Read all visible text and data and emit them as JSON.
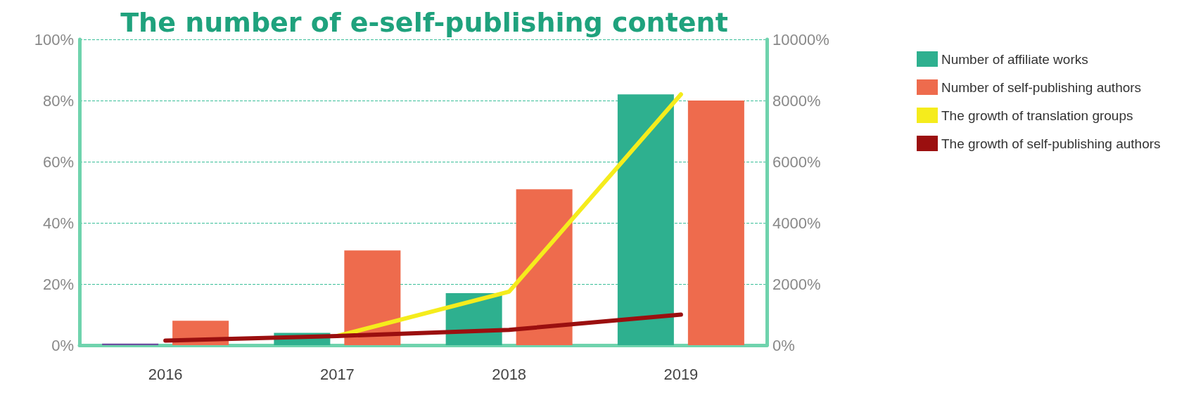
{
  "chart_data": {
    "type": "bar",
    "title": "The number of e-self-publishing content",
    "categories": [
      "2016",
      "2017",
      "2018",
      "2019"
    ],
    "series": [
      {
        "name": "Number of affiliate works",
        "color": "#2eb08f",
        "colors": [
          "#6b4fa0",
          "#2eb08f",
          "#2eb08f",
          "#2eb08f"
        ],
        "values": [
          0.5,
          4,
          17,
          82
        ]
      },
      {
        "name": "Number of self-publishing authors",
        "color": "#ee6b4d",
        "values": [
          8,
          31,
          51,
          80
        ]
      },
      {
        "name": "The growth of translation groups",
        "type": "line",
        "axis": "y2",
        "color": "#f5ec1c",
        "values": [
          null,
          300,
          1750,
          8200
        ]
      },
      {
        "name": "The growth of self-publishing authors",
        "type": "line",
        "axis": "y2",
        "color": "#9b0f0f",
        "values": [
          150,
          300,
          500,
          1000
        ]
      }
    ],
    "ylim": [
      0,
      100
    ],
    "yticks": [
      {
        "value": 0,
        "label": "0%"
      },
      {
        "value": 20,
        "label": "20%"
      },
      {
        "value": 40,
        "label": "40%"
      },
      {
        "value": 60,
        "label": "60%"
      },
      {
        "value": 80,
        "label": "80%"
      },
      {
        "value": 100,
        "label": "100%"
      }
    ],
    "y2lim": [
      0,
      10000
    ],
    "y2ticks": [
      {
        "value": 0,
        "label": "0%"
      },
      {
        "value": 2000,
        "label": "2000%"
      },
      {
        "value": 4000,
        "label": "4000%"
      },
      {
        "value": 6000,
        "label": "6000%"
      },
      {
        "value": 8000,
        "label": "8000%"
      },
      {
        "value": 10000,
        "label": "10000%"
      }
    ],
    "grid": "y",
    "legend": "right",
    "marker": "none",
    "line_style": "solid"
  }
}
